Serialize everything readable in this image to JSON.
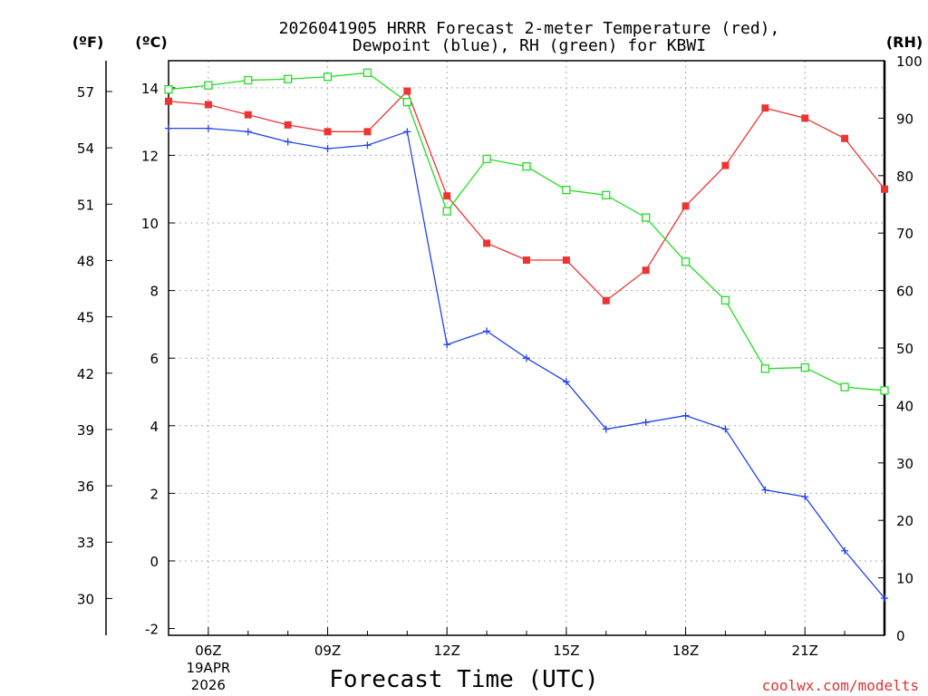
{
  "chart_data": {
    "type": "line",
    "title": [
      "2026041905 HRRR Forecast 2-meter Temperature (red),",
      "Dewpoint (blue), RH (green) for KBWI"
    ],
    "xlabel": "Forecast Time (UTC)",
    "unit_labels": {
      "fahrenheit": "(ºF)",
      "celsius": "(ºC)",
      "rh": "(RH)"
    },
    "x_hours": [
      5,
      6,
      7,
      8,
      9,
      10,
      11,
      12,
      13,
      14,
      15,
      16,
      17,
      18,
      19,
      20,
      21,
      22,
      23
    ],
    "x_range": [
      5,
      23
    ],
    "x_ticks": [
      {
        "hour": 6,
        "label": "06Z",
        "date": "19APR",
        "year": "2026"
      },
      {
        "hour": 9,
        "label": "09Z"
      },
      {
        "hour": 12,
        "label": "12Z"
      },
      {
        "hour": 15,
        "label": "15Z"
      },
      {
        "hour": 18,
        "label": "18Z"
      },
      {
        "hour": 21,
        "label": "21Z"
      }
    ],
    "celsius_axis": {
      "range": [
        -2.2,
        14.8
      ],
      "ticks": [
        "-2",
        "0",
        "2",
        "4",
        "6",
        "8",
        "10",
        "12",
        "14"
      ]
    },
    "fahrenheit_axis": {
      "ticks": [
        "30",
        "33",
        "36",
        "39",
        "42",
        "45",
        "48",
        "51",
        "54",
        "57"
      ]
    },
    "rh_axis": {
      "range": [
        0,
        100
      ],
      "ticks": [
        "0",
        "10",
        "20",
        "30",
        "40",
        "50",
        "60",
        "70",
        "80",
        "90",
        "100"
      ]
    },
    "series": [
      {
        "name": "Temperature",
        "color": "#ee3333",
        "marker": "filled-square",
        "axis": "celsius",
        "values": [
          13.6,
          13.5,
          13.2,
          12.9,
          12.7,
          12.7,
          13.9,
          10.8,
          9.4,
          8.9,
          8.9,
          7.7,
          8.6,
          10.5,
          11.7,
          13.4,
          13.1,
          12.5,
          11.0
        ]
      },
      {
        "name": "Dewpoint",
        "color": "#2244ee",
        "marker": "plus",
        "axis": "celsius",
        "values": [
          12.8,
          12.8,
          12.7,
          12.4,
          12.2,
          12.3,
          12.7,
          6.4,
          6.8,
          6.0,
          5.3,
          3.9,
          4.1,
          4.3,
          3.9,
          2.1,
          1.9,
          0.3,
          -1.1
        ]
      },
      {
        "name": "RH",
        "color": "#22dd22",
        "marker": "open-square",
        "axis": "rh",
        "values": [
          95.0,
          95.7,
          96.6,
          96.8,
          97.2,
          97.9,
          92.8,
          73.8,
          82.9,
          81.6,
          77.5,
          76.6,
          72.7,
          65.0,
          58.3,
          46.4,
          46.6,
          43.2,
          42.6
        ]
      }
    ]
  },
  "watermark": "coolwx.com/modelts"
}
